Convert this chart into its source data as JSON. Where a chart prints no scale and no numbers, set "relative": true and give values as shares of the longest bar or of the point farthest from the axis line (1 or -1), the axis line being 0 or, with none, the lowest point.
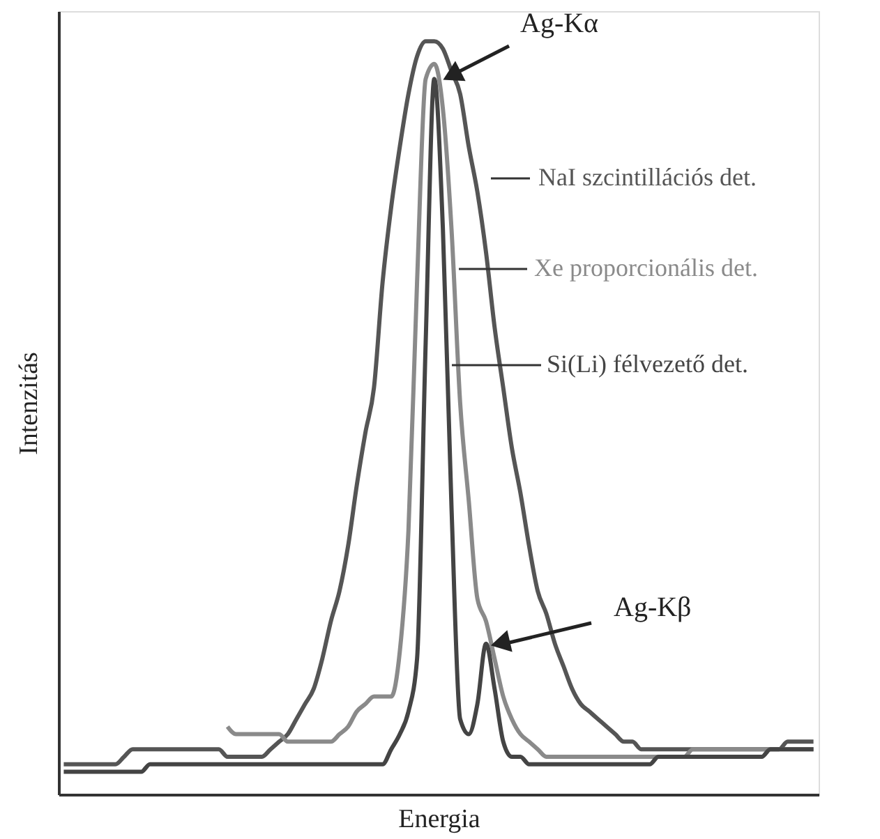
{
  "chart_data": {
    "type": "line",
    "relative": true,
    "xlabel": "Energia",
    "ylabel": "Intenzitás",
    "categories": [
      null,
      null,
      null,
      null,
      null,
      null,
      null,
      null,
      null,
      null,
      null,
      null,
      null,
      null,
      null,
      null,
      null,
      null,
      null,
      null,
      null,
      null,
      null,
      null,
      null,
      null,
      null,
      null,
      null,
      null,
      null,
      null,
      null,
      null,
      null,
      null,
      null,
      null,
      null,
      null,
      null,
      null,
      null,
      null,
      null,
      null,
      null,
      null,
      null,
      null,
      null,
      null,
      null,
      null,
      null,
      null,
      null,
      null,
      null,
      null,
      null,
      null,
      null,
      null,
      null,
      null,
      null,
      null,
      null,
      null,
      null,
      null,
      null,
      null,
      null,
      null,
      null,
      null,
      null,
      null,
      null,
      null,
      null,
      null,
      null,
      null,
      null,
      null
    ],
    "series": [
      {
        "name": "NaI szcintillációs det.",
        "color": "#555555",
        "values": [
          0.04,
          0.04,
          0.04,
          0.04,
          0.04,
          0.04,
          0.04,
          0.05,
          0.06,
          0.06,
          0.06,
          0.06,
          0.06,
          0.06,
          0.06,
          0.06,
          0.06,
          0.06,
          0.06,
          0.05,
          0.05,
          0.05,
          0.05,
          0.05,
          0.06,
          0.07,
          0.08,
          0.1,
          0.12,
          0.14,
          0.18,
          0.23,
          0.27,
          0.33,
          0.41,
          0.48,
          0.54,
          0.68,
          0.78,
          0.86,
          0.93,
          0.98,
          1.0,
          1.0,
          0.99,
          0.96,
          0.93,
          0.86,
          0.8,
          0.72,
          0.62,
          0.54,
          0.46,
          0.4,
          0.33,
          0.27,
          0.24,
          0.2,
          0.17,
          0.14,
          0.12,
          0.11,
          0.1,
          0.09,
          0.08,
          0.07,
          0.07,
          0.06,
          0.06,
          0.06,
          0.06,
          0.06,
          0.06,
          0.06,
          0.06,
          0.06,
          0.06,
          0.06,
          0.06,
          0.06,
          0.06,
          0.06,
          0.06,
          0.06,
          0.07,
          0.07,
          0.07,
          0.07
        ]
      },
      {
        "name": "Xe proporcionális det.",
        "color": "#8a8a8a",
        "values": [
          null,
          null,
          null,
          null,
          null,
          null,
          null,
          null,
          null,
          null,
          null,
          null,
          null,
          null,
          null,
          null,
          null,
          null,
          null,
          0.09,
          0.08,
          0.08,
          0.08,
          0.08,
          0.08,
          0.08,
          0.07,
          0.07,
          0.07,
          0.07,
          0.07,
          0.07,
          0.08,
          0.09,
          0.11,
          0.12,
          0.13,
          0.13,
          0.13,
          0.19,
          0.35,
          0.68,
          0.95,
          0.97,
          0.91,
          0.75,
          0.52,
          0.39,
          0.26,
          0.23,
          0.18,
          0.13,
          0.1,
          0.08,
          0.07,
          0.06,
          0.05,
          0.05,
          0.05,
          0.05,
          0.05,
          0.05,
          0.05,
          0.05,
          0.05,
          0.05,
          0.05,
          0.05,
          0.05,
          0.05,
          0.05,
          0.05,
          0.05,
          0.06,
          0.06,
          0.06,
          0.06,
          0.06,
          0.06,
          0.06,
          0.06,
          0.06,
          0.06,
          0.06,
          0.06,
          0.06,
          0.06,
          0.06
        ]
      },
      {
        "name": "Si(Li) félvezető det.",
        "color": "#444444",
        "values": [
          0.03,
          0.03,
          0.03,
          0.03,
          0.03,
          0.03,
          0.03,
          0.03,
          0.03,
          0.03,
          0.04,
          0.04,
          0.04,
          0.04,
          0.04,
          0.04,
          0.04,
          0.04,
          0.04,
          0.04,
          0.04,
          0.04,
          0.04,
          0.04,
          0.04,
          0.04,
          0.04,
          0.04,
          0.04,
          0.04,
          0.04,
          0.04,
          0.04,
          0.04,
          0.04,
          0.04,
          0.04,
          0.04,
          0.06,
          0.08,
          0.11,
          0.18,
          0.6,
          0.95,
          0.75,
          0.38,
          0.1,
          0.08,
          0.12,
          0.2,
          0.14,
          0.07,
          0.05,
          0.05,
          0.04,
          0.04,
          0.04,
          0.04,
          0.04,
          0.04,
          0.04,
          0.04,
          0.04,
          0.04,
          0.04,
          0.04,
          0.04,
          0.04,
          0.04,
          0.05,
          0.05,
          0.05,
          0.05,
          0.05,
          0.05,
          0.05,
          0.05,
          0.05,
          0.05,
          0.05,
          0.05,
          0.05,
          0.06,
          0.06,
          0.06,
          0.06,
          0.06,
          0.06
        ]
      }
    ],
    "annotations": [
      "Ag-Kα",
      "Ag-Kβ"
    ]
  }
}
